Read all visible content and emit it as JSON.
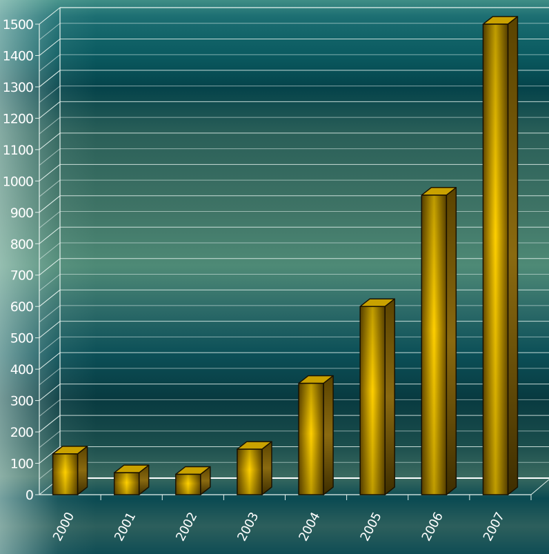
{
  "chart_data": {
    "type": "bar",
    "categories": [
      "2000",
      "2001",
      "2002",
      "2003",
      "2004",
      "2005",
      "2006",
      "2007"
    ],
    "values": [
      130,
      70,
      65,
      145,
      355,
      600,
      955,
      1500
    ],
    "ylim": [
      0,
      1500
    ],
    "yticks": [
      "0",
      "100",
      "200",
      "300",
      "400",
      "500",
      "600",
      "700",
      "800",
      "900",
      "1000",
      "1100",
      "1200",
      "1300",
      "1400",
      "1500"
    ],
    "grid": true,
    "legend": "none",
    "colors": {
      "bar_light": "#ffd000",
      "bar_dark": "#6e5000",
      "grid": "#e8f4f0",
      "background": "#0d4a50"
    }
  }
}
